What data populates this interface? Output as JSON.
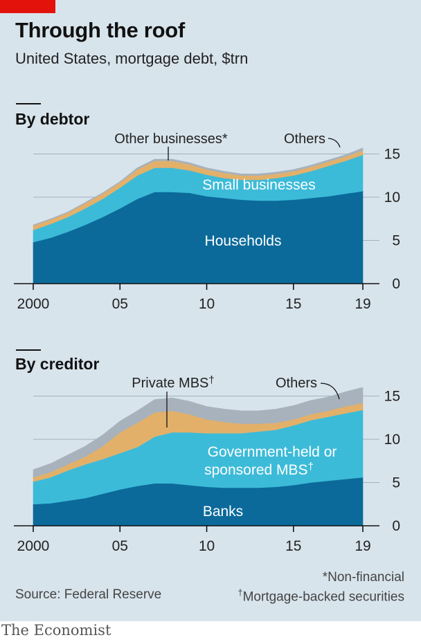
{
  "title": "Through the roof",
  "subtitle": "United States, mortgage debt, $trn",
  "chart_data": [
    {
      "type": "area",
      "title": "By debtor",
      "x": [
        2000,
        2001,
        2002,
        2003,
        2004,
        2005,
        2006,
        2007,
        2008,
        2009,
        2010,
        2011,
        2012,
        2013,
        2014,
        2015,
        2016,
        2017,
        2018,
        2019
      ],
      "x_tick_labels": [
        "2000",
        "05",
        "10",
        "15",
        "19"
      ],
      "x_tick_values": [
        2000,
        2005,
        2010,
        2015,
        2019
      ],
      "y_tick_labels": [
        "0",
        "5",
        "10",
        "15"
      ],
      "y_tick_values": [
        0,
        5,
        10,
        15
      ],
      "ylim": [
        0,
        16
      ],
      "grid": true,
      "series": [
        {
          "name": "Households",
          "color": "#0b6a9a",
          "values": [
            4.8,
            5.3,
            6.0,
            6.8,
            7.7,
            8.7,
            9.8,
            10.6,
            10.6,
            10.5,
            10.1,
            9.9,
            9.7,
            9.6,
            9.6,
            9.7,
            9.9,
            10.1,
            10.4,
            10.7
          ]
        },
        {
          "name": "Small businesses",
          "color": "#3cbbd8",
          "values": [
            1.4,
            1.6,
            1.7,
            1.9,
            2.1,
            2.4,
            2.7,
            2.8,
            2.8,
            2.6,
            2.5,
            2.3,
            2.3,
            2.4,
            2.6,
            2.8,
            3.1,
            3.5,
            3.8,
            4.2
          ]
        },
        {
          "name": "Other businesses*",
          "color": "#e3b06a",
          "values": [
            0.5,
            0.5,
            0.5,
            0.6,
            0.6,
            0.6,
            0.7,
            0.8,
            0.8,
            0.7,
            0.6,
            0.6,
            0.5,
            0.5,
            0.5,
            0.5,
            0.5,
            0.5,
            0.5,
            0.5
          ]
        },
        {
          "name": "Others",
          "color": "#a7b2bc",
          "values": [
            0.1,
            0.1,
            0.1,
            0.1,
            0.1,
            0.1,
            0.2,
            0.2,
            0.2,
            0.2,
            0.2,
            0.2,
            0.2,
            0.2,
            0.2,
            0.2,
            0.2,
            0.2,
            0.2,
            0.3
          ]
        }
      ]
    },
    {
      "type": "area",
      "title": "By creditor",
      "x": [
        2000,
        2001,
        2002,
        2003,
        2004,
        2005,
        2006,
        2007,
        2008,
        2009,
        2010,
        2011,
        2012,
        2013,
        2014,
        2015,
        2016,
        2017,
        2018,
        2019
      ],
      "x_tick_labels": [
        "2000",
        "05",
        "10",
        "15",
        "19"
      ],
      "x_tick_values": [
        2000,
        2005,
        2010,
        2015,
        2019
      ],
      "y_tick_labels": [
        "0",
        "5",
        "10",
        "15"
      ],
      "y_tick_values": [
        0,
        5,
        10,
        15
      ],
      "ylim": [
        0,
        16
      ],
      "grid": true,
      "series": [
        {
          "name": "Banks",
          "color": "#0b6a9a",
          "values": [
            2.5,
            2.6,
            2.9,
            3.2,
            3.7,
            4.2,
            4.6,
            4.9,
            4.9,
            4.7,
            4.5,
            4.4,
            4.4,
            4.4,
            4.5,
            4.7,
            5.0,
            5.2,
            5.4,
            5.6
          ]
        },
        {
          "name": "Government-held or sponsored MBS†",
          "color": "#3cbbd8",
          "values": [
            2.6,
            3.0,
            3.5,
            3.9,
            4.0,
            4.2,
            4.5,
            5.4,
            5.9,
            6.1,
            6.2,
            6.3,
            6.3,
            6.5,
            6.6,
            6.9,
            7.2,
            7.4,
            7.6,
            7.8
          ]
        },
        {
          "name": "Private MBS†",
          "color": "#e3b06a",
          "values": [
            0.5,
            0.6,
            0.7,
            0.9,
            1.5,
            2.4,
            2.8,
            2.8,
            2.5,
            2.1,
            1.6,
            1.3,
            1.1,
            0.9,
            0.8,
            0.7,
            0.7,
            0.7,
            0.8,
            0.8
          ]
        },
        {
          "name": "Others",
          "color": "#a7b2bc",
          "values": [
            0.9,
            1.0,
            1.1,
            1.2,
            1.3,
            1.3,
            1.4,
            1.5,
            1.5,
            1.5,
            1.5,
            1.5,
            1.5,
            1.5,
            1.6,
            1.6,
            1.6,
            1.6,
            1.7,
            1.8
          ]
        }
      ]
    }
  ],
  "labels": {
    "debtor": {
      "households": "Households",
      "small_businesses": "Small businesses",
      "other_businesses": "Other businesses*",
      "others": "Others"
    },
    "creditor": {
      "banks": "Banks",
      "gov_line1": "Government-held or",
      "gov_line2": "sponsored MBS",
      "gov_dagger": "†",
      "private_mbs": "Private MBS",
      "private_dagger": "†",
      "others": "Others"
    }
  },
  "footnotes": {
    "non_financial": "*Non-financial",
    "dagger": "†",
    "mbs": "Mortgage-backed securities"
  },
  "source": "Source: Federal Reserve",
  "brand": "The Economist",
  "colors": {
    "background": "#d8e4ec",
    "accent_red": "#e3120b",
    "gridline": "#9fb0bc"
  }
}
